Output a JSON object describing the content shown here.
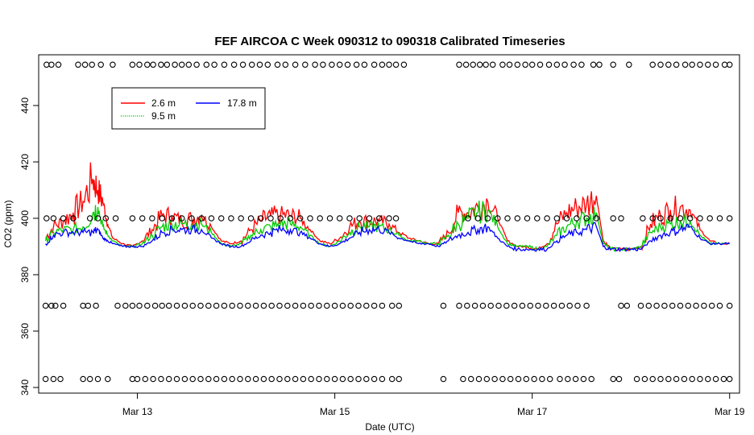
{
  "chart_data": {
    "type": "line",
    "title": "FEF AIRCOA C  Week 090312 to 090318  Calibrated Timeseries",
    "xlabel": "Date (UTC)",
    "ylabel": "CO2 (ppm)",
    "xlim_days": [
      12.0,
      19.1
    ],
    "ylim": [
      338,
      458
    ],
    "x_ticks": [
      {
        "value": 13,
        "label": "Mar 13"
      },
      {
        "value": 15,
        "label": "Mar 15"
      },
      {
        "value": 17,
        "label": "Mar 17"
      },
      {
        "value": 19,
        "label": "Mar 19"
      }
    ],
    "y_ticks": [
      340,
      360,
      380,
      400,
      420,
      440
    ],
    "legend": {
      "placement": "top-left",
      "entries": [
        {
          "label": "2.6 m",
          "color": "#ff0000"
        },
        {
          "label": "9.5 m",
          "color": "#00cc00"
        },
        {
          "label": "17.8 m",
          "color": "#0000ff"
        }
      ]
    },
    "series": [
      {
        "name": "2.6 m",
        "color": "#ff0000",
        "x": [
          12.07,
          12.15,
          12.25,
          12.35,
          12.45,
          12.55,
          12.6,
          12.65,
          12.7,
          12.75,
          12.85,
          12.95,
          13.05,
          13.15,
          13.25,
          13.35,
          13.45,
          13.55,
          13.65,
          13.75,
          13.85,
          13.95,
          14.05,
          14.15,
          14.25,
          14.35,
          14.45,
          14.55,
          14.65,
          14.75,
          14.85,
          14.95,
          15.05,
          15.15,
          15.25,
          15.35,
          15.45,
          15.55,
          15.65,
          15.75,
          15.85,
          15.95,
          16.05,
          16.15,
          16.25,
          16.35,
          16.45,
          16.55,
          16.65,
          16.75,
          16.85,
          16.95,
          17.05,
          17.15,
          17.25,
          17.35,
          17.45,
          17.55,
          17.65,
          17.72,
          17.8,
          17.9,
          18.0,
          18.1,
          18.2,
          18.3,
          18.4,
          18.5,
          18.6,
          18.7,
          18.8,
          18.9,
          19.0
        ],
        "y": [
          393,
          397,
          399,
          402,
          406,
          414,
          410,
          406,
          398,
          393,
          391,
          390,
          392,
          396,
          401,
          401,
          399,
          400,
          401,
          397,
          392,
          391,
          392,
          396,
          399,
          401,
          401,
          401,
          400,
          396,
          392,
          391,
          393,
          397,
          399,
          399,
          399,
          398,
          395,
          393,
          392,
          391,
          391,
          395,
          402,
          402,
          404,
          406,
          400,
          392,
          390,
          390,
          389,
          391,
          398,
          402,
          404,
          405,
          408,
          392,
          389,
          389,
          389,
          390,
          398,
          401,
          403,
          404,
          403,
          396,
          392,
          391,
          391
        ]
      },
      {
        "name": "9.5 m",
        "color": "#00cc00",
        "x": [
          12.07,
          12.15,
          12.25,
          12.35,
          12.45,
          12.55,
          12.6,
          12.65,
          12.7,
          12.75,
          12.85,
          12.95,
          13.05,
          13.15,
          13.25,
          13.35,
          13.45,
          13.55,
          13.65,
          13.75,
          13.85,
          13.95,
          14.05,
          14.15,
          14.25,
          14.35,
          14.45,
          14.55,
          14.65,
          14.75,
          14.85,
          14.95,
          15.05,
          15.15,
          15.25,
          15.35,
          15.45,
          15.55,
          15.65,
          15.75,
          15.85,
          15.95,
          16.05,
          16.15,
          16.25,
          16.35,
          16.45,
          16.55,
          16.65,
          16.75,
          16.85,
          16.95,
          17.05,
          17.15,
          17.25,
          17.35,
          17.45,
          17.55,
          17.65,
          17.72,
          17.8,
          17.9,
          18.0,
          18.1,
          18.2,
          18.3,
          18.4,
          18.5,
          18.6,
          18.7,
          18.8,
          18.9,
          19.0
        ],
        "y": [
          392,
          395,
          396,
          396,
          397,
          402,
          404,
          397,
          394,
          392,
          390,
          390,
          391,
          394,
          397,
          398,
          398,
          398,
          398,
          395,
          391,
          390,
          391,
          394,
          396,
          397,
          398,
          398,
          397,
          394,
          391,
          390,
          392,
          395,
          397,
          397,
          397,
          396,
          394,
          392,
          392,
          391,
          391,
          394,
          398,
          400,
          402,
          403,
          397,
          391,
          390,
          390,
          389,
          390,
          394,
          397,
          399,
          400,
          402,
          391,
          389,
          389,
          389,
          390,
          395,
          397,
          398,
          399,
          399,
          394,
          391,
          391,
          391
        ]
      },
      {
        "name": "17.8 m",
        "color": "#0000ff",
        "x": [
          12.07,
          12.15,
          12.25,
          12.35,
          12.45,
          12.55,
          12.6,
          12.65,
          12.7,
          12.75,
          12.85,
          12.95,
          13.05,
          13.15,
          13.25,
          13.35,
          13.45,
          13.55,
          13.65,
          13.75,
          13.85,
          13.95,
          14.05,
          14.15,
          14.25,
          14.35,
          14.45,
          14.55,
          14.65,
          14.75,
          14.85,
          14.95,
          15.05,
          15.15,
          15.25,
          15.35,
          15.45,
          15.55,
          15.65,
          15.75,
          15.85,
          15.95,
          16.05,
          16.15,
          16.25,
          16.35,
          16.45,
          16.55,
          16.65,
          16.75,
          16.85,
          16.95,
          17.05,
          17.15,
          17.25,
          17.35,
          17.45,
          17.55,
          17.65,
          17.72,
          17.8,
          17.9,
          18.0,
          18.1,
          18.2,
          18.3,
          18.4,
          18.5,
          18.6,
          18.7,
          18.8,
          18.9,
          19.0
        ],
        "y": [
          391,
          394,
          395,
          395,
          395,
          395,
          396,
          393,
          392,
          391,
          390,
          390,
          390,
          392,
          395,
          396,
          396,
          396,
          396,
          393,
          391,
          390,
          390,
          392,
          394,
          395,
          396,
          396,
          395,
          393,
          391,
          390,
          391,
          393,
          395,
          396,
          396,
          395,
          393,
          392,
          391,
          391,
          390,
          392,
          394,
          395,
          396,
          397,
          393,
          390,
          389,
          389,
          389,
          389,
          392,
          394,
          395,
          396,
          397,
          390,
          389,
          389,
          389,
          389,
          392,
          394,
          395,
          396,
          397,
          393,
          391,
          391,
          391
        ]
      },
      {
        "name": "",
        "type": "scatter",
        "marker": "open-circle",
        "color": "#000000",
        "note_rows": "flag markers at four levels",
        "rows": [
          {
            "y": 454.5,
            "x": [
              12.08,
              12.13,
              12.2,
              12.4,
              12.47,
              12.54,
              12.63,
              12.75,
              12.95,
              13.02,
              13.1,
              13.16,
              13.24,
              13.3,
              13.38,
              13.45,
              13.52,
              13.6,
              13.7,
              13.78,
              13.88,
              13.98,
              14.07,
              14.16,
              14.24,
              14.32,
              14.42,
              14.5,
              14.6,
              14.7,
              14.8,
              14.88,
              14.97,
              15.05,
              15.13,
              15.22,
              15.3,
              15.4,
              15.48,
              15.55,
              15.62,
              15.7,
              16.26,
              16.33,
              16.4,
              16.47,
              16.53,
              16.6,
              16.7,
              16.77,
              16.85,
              16.93,
              17.0,
              17.08,
              17.17,
              17.25,
              17.33,
              17.42,
              17.5,
              17.62,
              17.68,
              17.82,
              17.98,
              18.22,
              18.3,
              18.38,
              18.46,
              18.55,
              18.62,
              18.7,
              18.78,
              18.86,
              18.95,
              19.0
            ]
          },
          {
            "y": 400,
            "x": [
              12.08,
              12.15,
              12.25,
              12.35,
              12.52,
              12.6,
              12.68,
              12.78,
              12.95,
              13.05,
              13.15,
              13.25,
              13.35,
              13.45,
              13.55,
              13.65,
              13.75,
              13.85,
              13.95,
              14.05,
              14.15,
              14.25,
              14.35,
              14.45,
              14.55,
              14.65,
              14.75,
              14.85,
              14.95,
              15.05,
              15.15,
              15.25,
              15.35,
              15.45,
              15.55,
              15.62,
              16.35,
              16.45,
              16.55,
              16.65,
              16.75,
              16.85,
              16.95,
              17.05,
              17.15,
              17.25,
              17.35,
              17.45,
              17.55,
              17.65,
              17.82,
              17.9,
              18.12,
              18.22,
              18.3,
              18.4,
              18.5,
              18.6,
              18.7,
              18.8,
              18.9,
              19.0
            ]
          },
          {
            "y": 369,
            "x": [
              12.07,
              12.13,
              12.17,
              12.25,
              12.45,
              12.5,
              12.58,
              12.8,
              12.88,
              12.95,
              13.02,
              13.1,
              13.18,
              13.25,
              13.32,
              13.4,
              13.48,
              13.56,
              13.64,
              13.72,
              13.8,
              13.88,
              13.96,
              14.04,
              14.12,
              14.2,
              14.28,
              14.36,
              14.44,
              14.52,
              14.6,
              14.68,
              14.76,
              14.84,
              14.92,
              15.0,
              15.08,
              15.16,
              15.24,
              15.32,
              15.4,
              15.48,
              15.58,
              15.65,
              16.1,
              16.26,
              16.34,
              16.42,
              16.5,
              16.58,
              16.66,
              16.74,
              16.82,
              16.9,
              16.98,
              17.06,
              17.14,
              17.22,
              17.3,
              17.38,
              17.46,
              17.55,
              17.9,
              17.96,
              18.1,
              18.18,
              18.26,
              18.34,
              18.42,
              18.5,
              18.58,
              18.66,
              18.74,
              18.82,
              18.9,
              19.0
            ]
          },
          {
            "y": 343,
            "x": [
              12.07,
              12.15,
              12.22,
              12.45,
              12.52,
              12.6,
              12.7,
              12.95,
              13.0,
              13.08,
              13.16,
              13.24,
              13.32,
              13.4,
              13.48,
              13.56,
              13.64,
              13.72,
              13.8,
              13.88,
              13.96,
              14.04,
              14.12,
              14.2,
              14.28,
              14.36,
              14.44,
              14.52,
              14.6,
              14.68,
              14.76,
              14.84,
              14.92,
              15.0,
              15.08,
              15.16,
              15.24,
              15.32,
              15.4,
              15.48,
              15.58,
              15.65,
              16.1,
              16.3,
              16.38,
              16.46,
              16.54,
              16.62,
              16.7,
              16.78,
              16.86,
              16.94,
              17.02,
              17.1,
              17.18,
              17.28,
              17.36,
              17.44,
              17.52,
              17.6,
              17.82,
              17.88,
              18.06,
              18.14,
              18.22,
              18.3,
              18.38,
              18.46,
              18.54,
              18.62,
              18.7,
              18.78,
              18.86,
              18.94,
              19.0
            ]
          }
        ]
      }
    ]
  }
}
